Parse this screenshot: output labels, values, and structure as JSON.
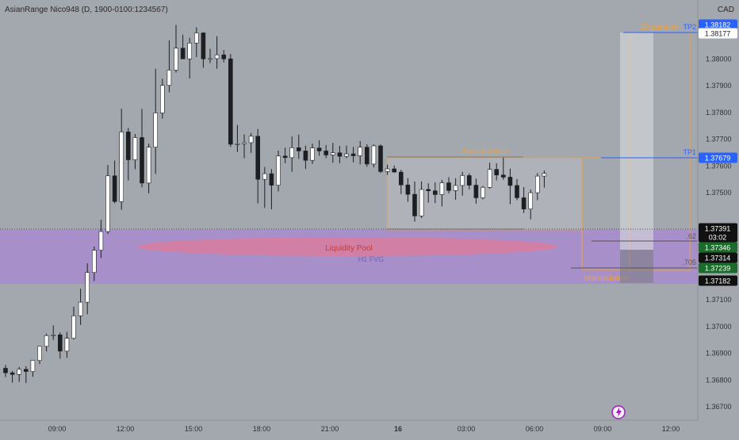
{
  "header": {
    "symbol_line": "AsianRange Nico948 (D, 1900-0100:1234567)",
    "currency": "CAD"
  },
  "colors": {
    "background": "#a3a7ae",
    "bull": "#ffffff",
    "bear": "#1e1f22",
    "accent_blue": "#2962ff",
    "orange": "#f0a23c",
    "pool": "#a78bd0",
    "pool_ellipse": "#e07a9a",
    "dark_badge": "#111111",
    "green_badge": "#1b6b2a"
  },
  "icons": {
    "bolt": "lightning-bolt-icon"
  },
  "chart_data": {
    "type": "candlestick",
    "y_axis": {
      "range": [
        1.3665,
        1.3822
      ],
      "ticks": [
        "1.38100",
        "1.38000",
        "1.37900",
        "1.37800",
        "1.37700",
        "1.37600",
        "1.37500",
        "1.37100",
        "1.37000",
        "1.36900",
        "1.36800",
        "1.36700"
      ],
      "tick_values": [
        1.381,
        1.38,
        1.379,
        1.378,
        1.377,
        1.376,
        1.375,
        1.371,
        1.37,
        1.369,
        1.368,
        1.367
      ]
    },
    "x_axis": {
      "labels": [
        "09:00",
        "12:00",
        "15:00",
        "18:00",
        "21:00",
        "16",
        "03:00",
        "06:00",
        "09:00",
        "12:00"
      ],
      "label_bar_index": [
        0,
        10,
        20,
        30,
        40,
        50,
        60,
        70,
        80,
        90
      ]
    },
    "candles": [
      [
        1.36844,
        1.36857,
        1.36811,
        1.36827
      ],
      [
        1.36827,
        1.36834,
        1.3679,
        1.36821
      ],
      [
        1.36821,
        1.36849,
        1.36793,
        1.3684
      ],
      [
        1.3684,
        1.36852,
        1.36789,
        1.36832
      ],
      [
        1.36832,
        1.36873,
        1.36812,
        1.36873
      ],
      [
        1.36873,
        1.36926,
        1.3686,
        1.36926
      ],
      [
        1.36926,
        1.36974,
        1.36907,
        1.36966
      ],
      [
        1.36966,
        1.37004,
        1.3695,
        1.36969
      ],
      [
        1.36969,
        1.36978,
        1.3688,
        1.36908
      ],
      [
        1.36908,
        1.3698,
        1.36883,
        1.36956
      ],
      [
        1.36956,
        1.37074,
        1.36951,
        1.3704
      ],
      [
        1.3704,
        1.37141,
        1.37006,
        1.37091
      ],
      [
        1.37091,
        1.37236,
        1.37046,
        1.37202
      ],
      [
        1.37202,
        1.37299,
        1.3717,
        1.37285
      ],
      [
        1.37285,
        1.37399,
        1.37256,
        1.37355
      ],
      [
        1.37355,
        1.37604,
        1.37346,
        1.37563
      ],
      [
        1.37563,
        1.3762,
        1.3746,
        1.37467
      ],
      [
        1.37467,
        1.37814,
        1.37436,
        1.37727
      ],
      [
        1.37727,
        1.37742,
        1.37546,
        1.37623
      ],
      [
        1.37623,
        1.37719,
        1.37588,
        1.37706
      ],
      [
        1.37706,
        1.37813,
        1.3752,
        1.37536
      ],
      [
        1.37536,
        1.37683,
        1.37498,
        1.3767
      ],
      [
        1.3767,
        1.37963,
        1.3757,
        1.37798
      ],
      [
        1.37798,
        1.37926,
        1.37777,
        1.37901
      ],
      [
        1.37901,
        1.38069,
        1.37875,
        1.37958
      ],
      [
        1.37958,
        1.38127,
        1.37949,
        1.3804
      ],
      [
        1.3804,
        1.3809,
        1.38,
        1.38
      ],
      [
        1.38,
        1.38079,
        1.37927,
        1.38059
      ],
      [
        1.38059,
        1.38118,
        1.38007,
        1.38097
      ],
      [
        1.38097,
        1.38099,
        1.37967,
        1.38
      ],
      [
        1.38,
        1.38038,
        1.37984,
        1.38001
      ],
      [
        1.38001,
        1.38085,
        1.37963,
        1.38015
      ],
      [
        1.38015,
        1.38033,
        1.37987,
        1.38
      ],
      [
        1.38,
        1.38018,
        1.37671,
        1.37681
      ],
      [
        1.37681,
        1.37753,
        1.37652,
        1.37683
      ],
      [
        1.37683,
        1.37718,
        1.37629,
        1.37687
      ],
      [
        1.37687,
        1.37723,
        1.37649,
        1.37711
      ],
      [
        1.37711,
        1.37738,
        1.3746,
        1.3755
      ],
      [
        1.3755,
        1.37596,
        1.37443,
        1.37571
      ],
      [
        1.37571,
        1.37588,
        1.37438,
        1.37528
      ],
      [
        1.37528,
        1.37657,
        1.37505,
        1.37637
      ],
      [
        1.37637,
        1.37668,
        1.3761,
        1.37631
      ],
      [
        1.37631,
        1.3771,
        1.37578,
        1.37668
      ],
      [
        1.37668,
        1.37717,
        1.37626,
        1.37656
      ],
      [
        1.37656,
        1.37676,
        1.37589,
        1.37621
      ],
      [
        1.37621,
        1.37684,
        1.37608,
        1.37667
      ],
      [
        1.37667,
        1.37696,
        1.37638,
        1.37656
      ],
      [
        1.37656,
        1.37678,
        1.37629,
        1.37641
      ],
      [
        1.37641,
        1.37686,
        1.37612,
        1.37649
      ],
      [
        1.37649,
        1.37675,
        1.3761,
        1.37636
      ],
      [
        1.37636,
        1.37676,
        1.37629,
        1.37645
      ],
      [
        1.37645,
        1.37671,
        1.37613,
        1.37638
      ],
      [
        1.37638,
        1.37693,
        1.37606,
        1.3767
      ],
      [
        1.3767,
        1.37681,
        1.37597,
        1.37607
      ],
      [
        1.37607,
        1.3768,
        1.37595,
        1.37675
      ],
      [
        1.37675,
        1.3768,
        1.37574,
        1.37579
      ],
      [
        1.37579,
        1.37605,
        1.37567,
        1.37589
      ],
      [
        1.37589,
        1.37602,
        1.37576,
        1.37577
      ],
      [
        1.37577,
        1.37586,
        1.37495,
        1.37529
      ],
      [
        1.37529,
        1.37554,
        1.37466,
        1.37494
      ],
      [
        1.37494,
        1.37542,
        1.37392,
        1.37413
      ],
      [
        1.37413,
        1.37542,
        1.37405,
        1.37512
      ],
      [
        1.37512,
        1.37535,
        1.37463,
        1.37507
      ],
      [
        1.37507,
        1.37539,
        1.37461,
        1.37493
      ],
      [
        1.37493,
        1.37548,
        1.37449,
        1.37537
      ],
      [
        1.37537,
        1.37558,
        1.37497,
        1.37508
      ],
      [
        1.37508,
        1.37554,
        1.37473,
        1.37527
      ],
      [
        1.37527,
        1.37578,
        1.37489,
        1.37564
      ],
      [
        1.37564,
        1.37572,
        1.37512,
        1.37528
      ],
      [
        1.37528,
        1.37553,
        1.37459,
        1.37481
      ],
      [
        1.37481,
        1.37526,
        1.37475,
        1.3752
      ],
      [
        1.3752,
        1.37612,
        1.37515,
        1.37587
      ],
      [
        1.37587,
        1.3761,
        1.37546,
        1.37566
      ],
      [
        1.37566,
        1.37631,
        1.37548,
        1.37558
      ],
      [
        1.37558,
        1.3759,
        1.37457,
        1.37527
      ],
      [
        1.37527,
        1.37551,
        1.37472,
        1.37481
      ],
      [
        1.37481,
        1.37521,
        1.37424,
        1.37439
      ],
      [
        1.37439,
        1.37512,
        1.374,
        1.375
      ],
      [
        1.375,
        1.37573,
        1.37472,
        1.37562
      ],
      [
        1.37562,
        1.37583,
        1.37519,
        1.37572
      ]
    ],
    "lines": {
      "current_price": 1.37391,
      "tp2": 1.38182,
      "tp1": 1.37679,
      "range_high": 1.37679,
      "range_low": 1.37386
    },
    "price_badges": [
      {
        "value": "1.38182",
        "style": "blue"
      },
      {
        "value": "1.38177",
        "style": "white"
      },
      {
        "value": "1.37679",
        "style": "blue"
      },
      {
        "value": "1.37391",
        "style": "dark"
      },
      {
        "value": "03:02",
        "style": "dark"
      },
      {
        "value": "1.37346",
        "style": "green"
      },
      {
        "value": "1.37314",
        "style": "dark"
      },
      {
        "value": "1.37239",
        "style": "green"
      },
      {
        "value": "1.37182",
        "style": "dark"
      }
    ],
    "annotations": {
      "expansion": "Expansion",
      "tp2": "TP2",
      "tp1": "TP1",
      "accumulation": "Accumulation",
      "liquidity_pool": "Liquidity Pool",
      "fvg": "H1 FVG",
      "manipulation": "Manipulation",
      "fib_a": ".62",
      "fib_b": ".705"
    }
  }
}
